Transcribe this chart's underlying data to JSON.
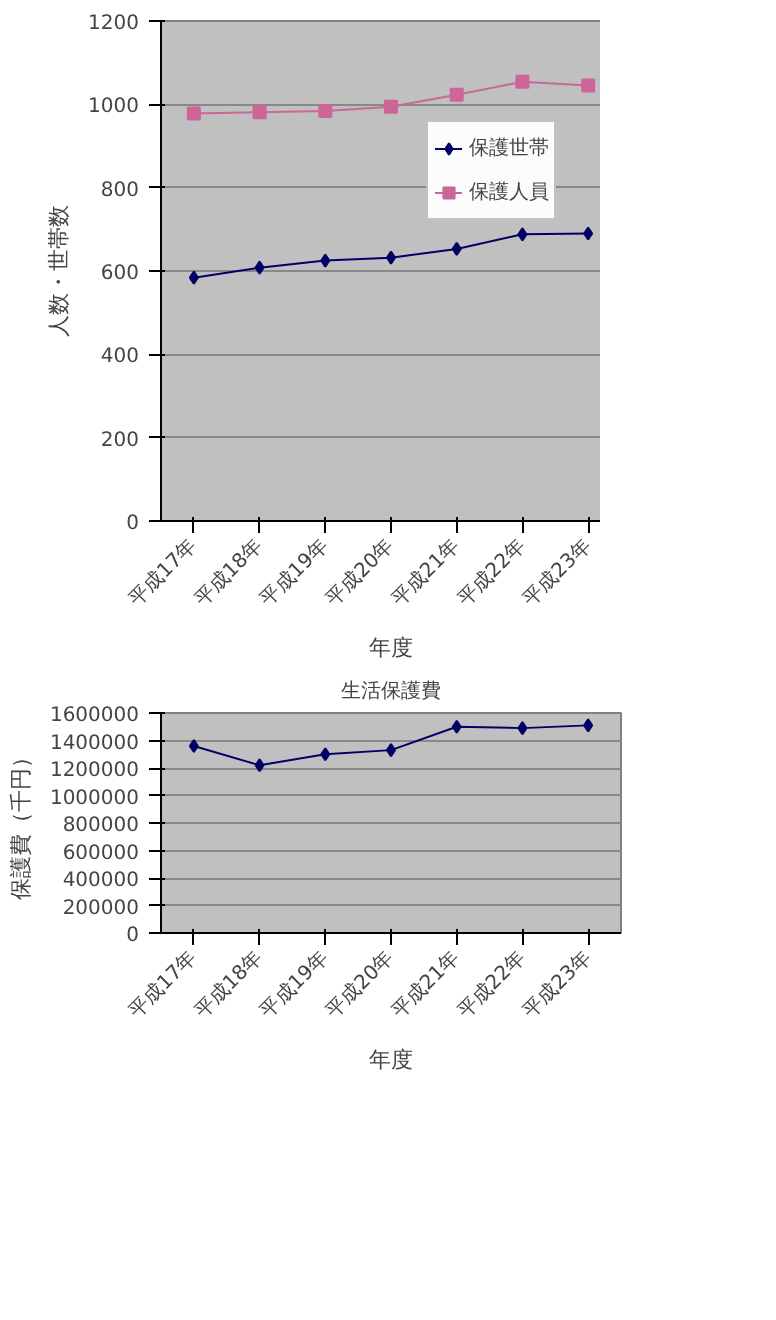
{
  "chart_data": [
    {
      "type": "line",
      "xlabel": "年度",
      "ylabel": "人数・世帯数",
      "categories": [
        "平成17年",
        "平成18年",
        "平成19年",
        "平成20年",
        "平成21年",
        "平成22年",
        "平成23年"
      ],
      "series": [
        {
          "name": "保護世帯",
          "color": "#000066",
          "marker": "diamond",
          "values": [
            584,
            608,
            625,
            632,
            653,
            688,
            690
          ]
        },
        {
          "name": "保護人員",
          "color": "#cc6699",
          "marker": "square",
          "values": [
            978,
            981,
            984,
            994,
            1023,
            1054,
            1045
          ]
        }
      ],
      "ylim": [
        0,
        1200
      ],
      "yticks": [
        0,
        200,
        400,
        600,
        800,
        1000,
        1200
      ],
      "grid": "y",
      "legend": "right"
    },
    {
      "type": "line",
      "title": "生活保護費",
      "xlabel": "年度",
      "ylabel": "保護費（千円）",
      "categories": [
        "平成17年",
        "平成18年",
        "平成19年",
        "平成20年",
        "平成21年",
        "平成22年",
        "平成23年"
      ],
      "series": [
        {
          "color": "#000066",
          "marker": "diamond",
          "values": [
            1360000,
            1220000,
            1300000,
            1330000,
            1500000,
            1490000,
            1510000
          ]
        }
      ],
      "ylim": [
        0,
        1600000
      ],
      "yticks": [
        0,
        200000,
        400000,
        600000,
        800000,
        1000000,
        1200000,
        1400000,
        1600000
      ],
      "grid": "y",
      "legend": false
    }
  ]
}
